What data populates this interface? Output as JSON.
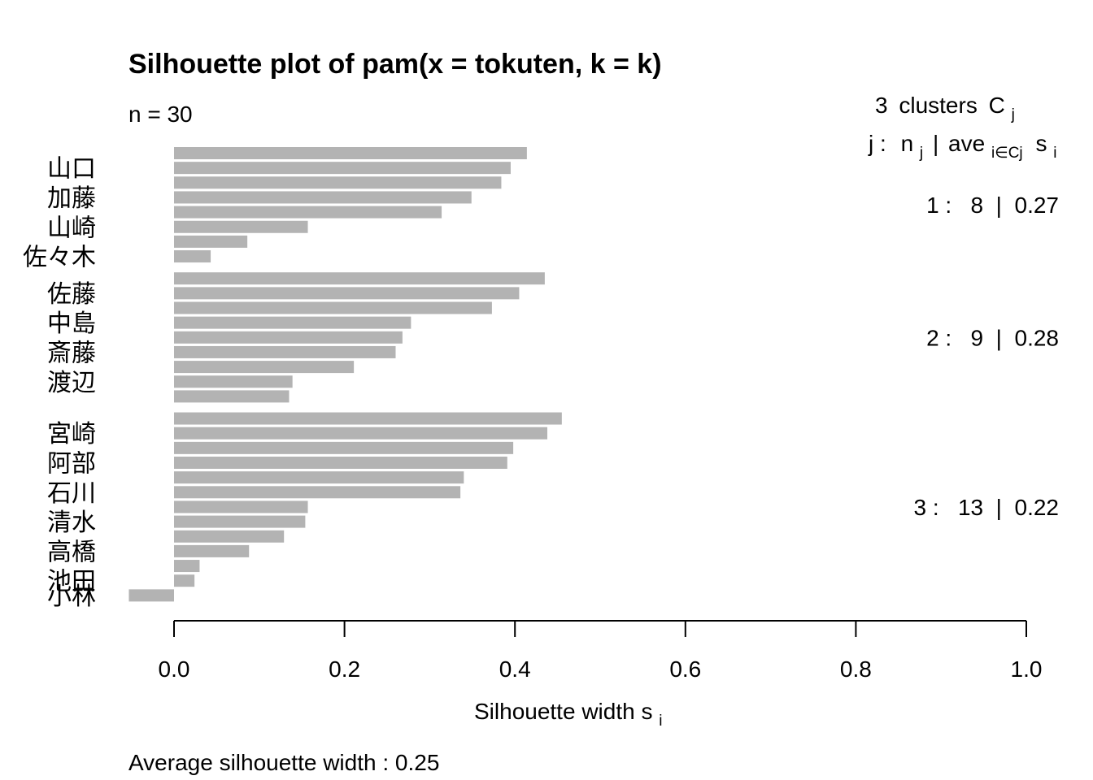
{
  "chart_data": {
    "type": "bar",
    "orientation": "horizontal",
    "title": "Silhouette plot of pam(x = tokuten, k = k)",
    "n_label": "n = 30",
    "header": {
      "clusters_count": "3",
      "clusters_word": "clusters",
      "clusters_symbol": "C",
      "clusters_symbol_sub": "j",
      "col_j": "j :",
      "col_n": "n",
      "col_n_sub": "j",
      "col_sep": "|",
      "col_ave": "ave",
      "col_ave_sub": "i∈Cj",
      "col_s": "s",
      "col_s_sub": "i"
    },
    "xlabel": "Silhouette width s",
    "xlabel_sub": "i",
    "xlim": [
      0,
      1
    ],
    "xticks": [
      "0.0",
      "0.2",
      "0.4",
      "0.6",
      "0.8",
      "1.0"
    ],
    "footer": "Average silhouette width :  0.25",
    "bar_color": "#b3b3b3",
    "clusters": [
      {
        "id": "1",
        "summary": "1 :   8  |  0.27",
        "values": [
          0.414,
          0.395,
          0.384,
          0.349,
          0.314,
          0.157,
          0.086,
          0.043
        ],
        "labels": [
          "",
          "山口",
          "",
          "加藤",
          "",
          "山崎",
          "",
          "佐々木"
        ]
      },
      {
        "id": "2",
        "summary": "2 :   9  |  0.28",
        "values": [
          0.435,
          0.405,
          0.373,
          0.278,
          0.268,
          0.26,
          0.211,
          0.139,
          0.135
        ],
        "labels": [
          "",
          "佐藤",
          "",
          "中島",
          "",
          "斎藤",
          "",
          "渡辺",
          ""
        ]
      },
      {
        "id": "3",
        "summary": "3 :   13  |  0.22",
        "values": [
          0.455,
          0.438,
          0.398,
          0.391,
          0.34,
          0.336,
          0.157,
          0.154,
          0.129,
          0.088,
          0.03,
          0.024,
          -0.053
        ],
        "labels": [
          "",
          "宮崎",
          "",
          "阿部",
          "",
          "石川",
          "",
          "清水",
          "",
          "高橋",
          "",
          "池田",
          "小林"
        ]
      }
    ]
  }
}
